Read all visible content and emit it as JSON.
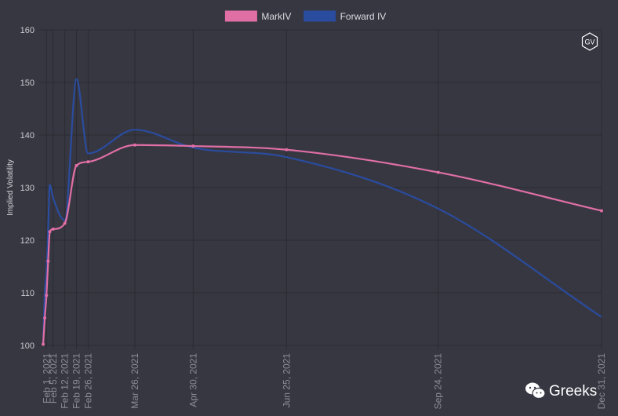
{
  "chart_data": {
    "type": "line",
    "title": "",
    "xlabel": "",
    "ylabel": "Implied Volatility",
    "ylim": [
      100,
      160
    ],
    "yticks": [
      100,
      110,
      120,
      130,
      140,
      150,
      160
    ],
    "grid": true,
    "legend_position": "top-center",
    "x_dates": [
      "2021-01-30",
      "2021-01-31",
      "2021-02-01",
      "2021-02-02",
      "2021-02-03",
      "2021-02-05",
      "2021-02-12",
      "2021-02-19",
      "2021-02-26",
      "2021-03-26",
      "2021-04-30",
      "2021-06-25",
      "2021-09-24",
      "2021-12-31"
    ],
    "x_tick_labels": [
      {
        "date": "2021-02-01",
        "label": "Feb 1, 2021"
      },
      {
        "date": "2021-02-05",
        "label": "Feb 5, 2021"
      },
      {
        "date": "2021-02-12",
        "label": "Feb 12, 2021"
      },
      {
        "date": "2021-02-19",
        "label": "Feb 19, 2021"
      },
      {
        "date": "2021-02-26",
        "label": "Feb 26, 2021"
      },
      {
        "date": "2021-03-26",
        "label": "Mar 26, 2021"
      },
      {
        "date": "2021-04-30",
        "label": "Apr 30, 2021"
      },
      {
        "date": "2021-06-25",
        "label": "Jun 25, 2021"
      },
      {
        "date": "2021-09-24",
        "label": "Sep 24, 2021"
      },
      {
        "date": "2021-12-31",
        "label": "Dec 31, 2021"
      }
    ],
    "series": [
      {
        "name": "MarkIV",
        "color": "#e06fa5",
        "show_points": true,
        "values": [
          100.2,
          105.2,
          109.5,
          116.0,
          121.6,
          122.1,
          123.2,
          134.2,
          134.9,
          138.1,
          137.9,
          137.2,
          132.9,
          125.6
        ]
      },
      {
        "name": "Forward IV",
        "color": "#2a4c9e",
        "show_points": false,
        "values": [
          100.2,
          110.0,
          114.0,
          122.0,
          130.5,
          128.0,
          123.8,
          150.6,
          136.5,
          141.0,
          137.6,
          135.8,
          126.0,
          105.4
        ]
      }
    ]
  },
  "logo": {
    "text": "GV"
  },
  "watermark": {
    "text": "Greeks",
    "icon": "wechat-icon"
  }
}
